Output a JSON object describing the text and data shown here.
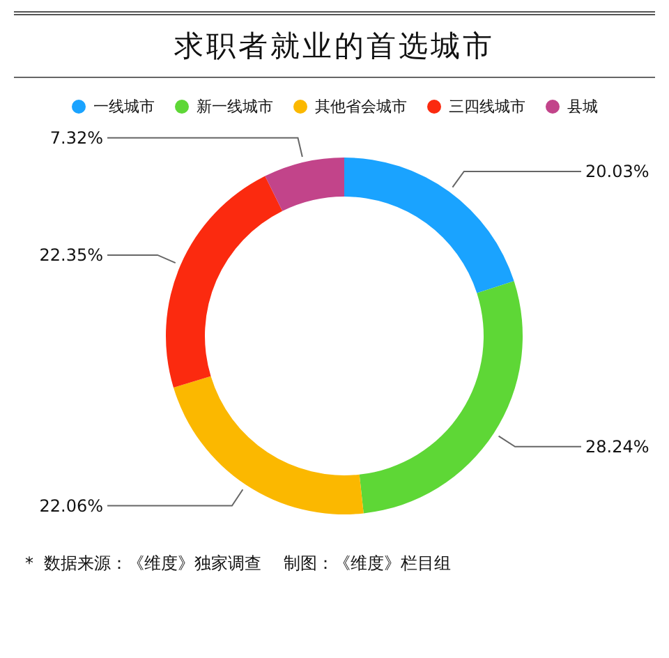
{
  "chart_data": {
    "type": "donut",
    "title": "求职者就业的首选城市",
    "categories": [
      "一线城市",
      "新一线城市",
      "其他省会城市",
      "三四线城市",
      "县城"
    ],
    "values": [
      20.03,
      28.24,
      22.06,
      22.35,
      7.32
    ],
    "value_labels": [
      "20.03%",
      "28.24%",
      "22.06%",
      "22.35%",
      "7.32%"
    ],
    "colors": [
      "#1aa3ff",
      "#5ed736",
      "#fbb800",
      "#fb2a0f",
      "#c2448a"
    ],
    "legend": "top",
    "annotations": [
      "*  数据来源：《维度》独家调查　 制图：《维度》栏目组"
    ]
  }
}
